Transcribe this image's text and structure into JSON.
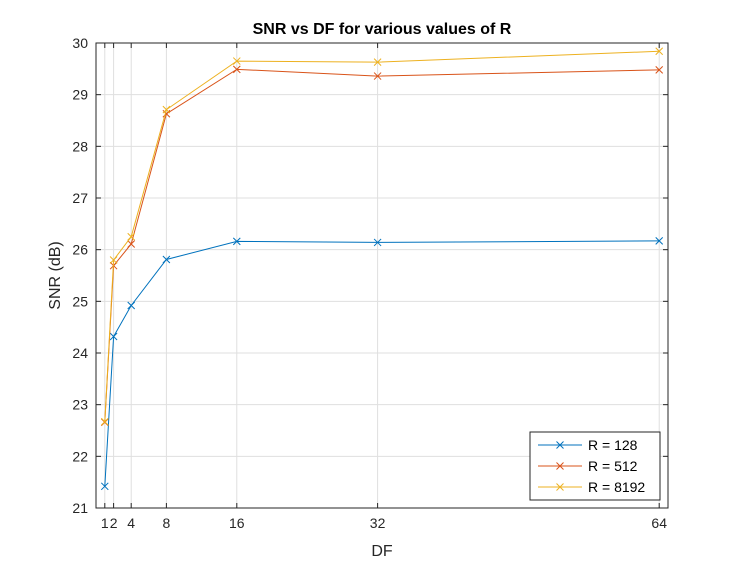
{
  "chart_data": {
    "type": "line",
    "title": "SNR vs DF for various values of R",
    "xlabel": "DF",
    "ylabel": "SNR (dB)",
    "xlim": [
      0,
      65
    ],
    "ylim": [
      21,
      30
    ],
    "xticks": [
      1,
      2,
      4,
      8,
      16,
      32,
      64
    ],
    "xtick_labels": [
      "1",
      "2",
      "4",
      "8",
      "16",
      "32",
      "64"
    ],
    "yticks": [
      21,
      22,
      23,
      24,
      25,
      26,
      27,
      28,
      29,
      30
    ],
    "ytick_labels": [
      "21",
      "22",
      "23",
      "24",
      "25",
      "26",
      "27",
      "28",
      "29",
      "30"
    ],
    "grid": true,
    "legend_location": "bottom-right",
    "x": [
      1,
      2,
      4,
      8,
      16,
      32,
      64
    ],
    "series": [
      {
        "name": "R = 128",
        "color": "#0072BD",
        "marker": "x",
        "values": [
          21.42,
          24.32,
          24.92,
          25.81,
          26.16,
          26.14,
          26.17
        ]
      },
      {
        "name": "R = 512",
        "color": "#D95319",
        "marker": "x",
        "values": [
          22.66,
          25.69,
          26.11,
          28.63,
          29.49,
          29.36,
          29.48
        ]
      },
      {
        "name": "R = 8192",
        "color": "#EDB120",
        "marker": "x",
        "values": [
          22.67,
          25.8,
          26.25,
          28.71,
          29.65,
          29.63,
          29.84
        ]
      }
    ]
  }
}
